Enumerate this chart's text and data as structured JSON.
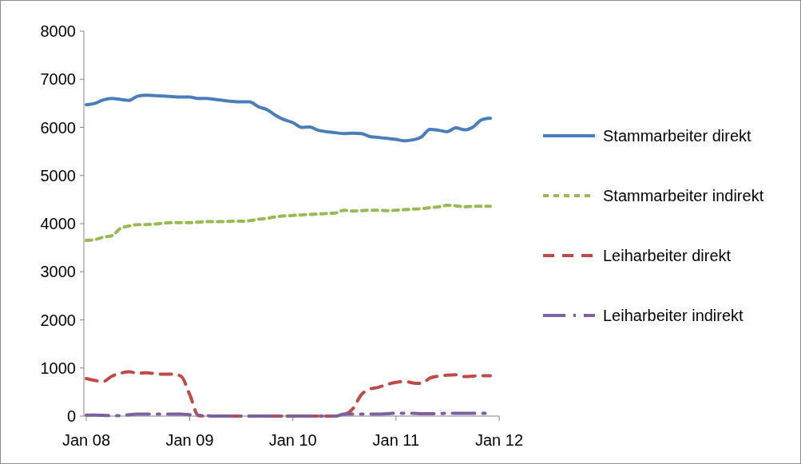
{
  "chart_data": {
    "type": "line",
    "x": [
      "2008-01",
      "2008-02",
      "2008-03",
      "2008-04",
      "2008-05",
      "2008-06",
      "2008-07",
      "2008-08",
      "2008-09",
      "2008-10",
      "2008-11",
      "2008-12",
      "2009-01",
      "2009-02",
      "2009-03",
      "2009-04",
      "2009-05",
      "2009-06",
      "2009-07",
      "2009-08",
      "2009-09",
      "2009-10",
      "2009-11",
      "2009-12",
      "2010-01",
      "2010-02",
      "2010-03",
      "2010-04",
      "2010-05",
      "2010-06",
      "2010-07",
      "2010-08",
      "2010-09",
      "2010-10",
      "2010-11",
      "2010-12",
      "2011-01",
      "2011-02",
      "2011-03",
      "2011-04",
      "2011-05",
      "2011-06",
      "2011-07",
      "2011-08",
      "2011-09",
      "2011-10",
      "2011-11",
      "2011-12"
    ],
    "series": [
      {
        "name": "Stammarbeiter direkt",
        "color": "#4a7ebb",
        "line_style": "solid",
        "values": [
          6470,
          6500,
          6570,
          6600,
          6580,
          6560,
          6650,
          6670,
          6660,
          6650,
          6640,
          6630,
          6630,
          6600,
          6600,
          6580,
          6560,
          6540,
          6530,
          6530,
          6430,
          6370,
          6250,
          6160,
          6100,
          6000,
          6010,
          5940,
          5910,
          5890,
          5870,
          5880,
          5870,
          5810,
          5790,
          5770,
          5750,
          5720,
          5740,
          5800,
          5960,
          5940,
          5910,
          5990,
          5950,
          6010,
          6160,
          6190
        ]
      },
      {
        "name": "Stammarbeiter indirekt",
        "color": "#98b954",
        "line_style": "dashed",
        "values": [
          3650,
          3670,
          3720,
          3750,
          3900,
          3950,
          3980,
          3980,
          3990,
          4010,
          4020,
          4020,
          4020,
          4030,
          4040,
          4040,
          4040,
          4050,
          4050,
          4060,
          4090,
          4110,
          4140,
          4160,
          4170,
          4180,
          4190,
          4200,
          4210,
          4220,
          4280,
          4260,
          4270,
          4280,
          4280,
          4270,
          4280,
          4290,
          4300,
          4310,
          4330,
          4350,
          4380,
          4370,
          4350,
          4360,
          4360,
          4360
        ]
      },
      {
        "name": "Leiharbeiter direkt",
        "color": "#be4b48",
        "line_style": "dashed",
        "values": [
          780,
          740,
          720,
          830,
          890,
          920,
          890,
          900,
          880,
          870,
          870,
          830,
          450,
          10,
          0,
          0,
          0,
          0,
          0,
          0,
          0,
          0,
          0,
          0,
          0,
          0,
          0,
          0,
          0,
          0,
          30,
          150,
          450,
          560,
          600,
          660,
          700,
          720,
          690,
          680,
          790,
          830,
          850,
          860,
          820,
          830,
          840,
          840
        ]
      },
      {
        "name": "Leiharbeiter indirekt",
        "color": "#7d60a0",
        "line_style": "dashed",
        "values": [
          20,
          20,
          15,
          10,
          10,
          30,
          40,
          40,
          40,
          40,
          40,
          40,
          30,
          20,
          10,
          0,
          0,
          0,
          0,
          0,
          0,
          0,
          0,
          0,
          0,
          0,
          0,
          0,
          0,
          0,
          40,
          40,
          40,
          40,
          40,
          50,
          60,
          60,
          60,
          50,
          50,
          50,
          60,
          60,
          60,
          60,
          60,
          60
        ]
      }
    ],
    "xlim": [
      "2008-01",
      "2012-01"
    ],
    "xticks": [
      {
        "value": "2008-01",
        "label": "Jan 08"
      },
      {
        "value": "2009-01",
        "label": "Jan 09"
      },
      {
        "value": "2010-01",
        "label": "Jan 10"
      },
      {
        "value": "2011-01",
        "label": "Jan 11"
      },
      {
        "value": "2012-01",
        "label": "Jan 12"
      }
    ],
    "ylim": [
      0,
      8000
    ],
    "yticks": [
      0,
      1000,
      2000,
      3000,
      4000,
      5000,
      6000,
      7000,
      8000
    ],
    "grid": false,
    "legend": "right"
  }
}
